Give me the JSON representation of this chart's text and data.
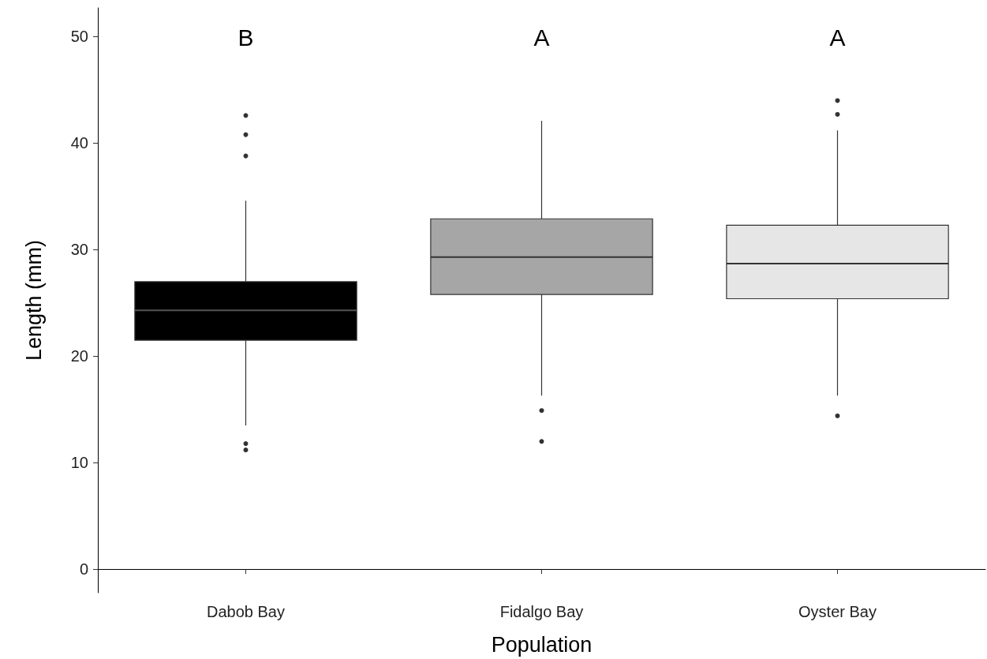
{
  "chart_data": {
    "type": "box",
    "xlabel": "Population",
    "ylabel": "Length (mm)",
    "categories": [
      "Dabob Bay",
      "Fidalgo Bay",
      "Oyster Bay"
    ],
    "colors": [
      "#000000",
      "#a6a6a6",
      "#e6e6e6"
    ],
    "boxes": [
      {
        "low": 13.5,
        "q1": 21.5,
        "median": 24.3,
        "q3": 27.0,
        "high": 34.6,
        "outliers": [
          42.6,
          40.8,
          38.8,
          11.8,
          11.2
        ]
      },
      {
        "low": 16.3,
        "q1": 25.8,
        "median": 29.3,
        "q3": 32.9,
        "high": 42.1,
        "outliers": [
          14.9,
          12.0
        ]
      },
      {
        "low": 16.3,
        "q1": 25.4,
        "median": 28.7,
        "q3": 32.3,
        "high": 41.2,
        "outliers": [
          44.0,
          42.7,
          14.4
        ]
      }
    ],
    "ylim": [
      -2.2,
      52.7
    ],
    "yticks": [
      0,
      10,
      20,
      30,
      40,
      50
    ],
    "grid": false,
    "annotations": [
      "B",
      "A",
      "A"
    ]
  }
}
